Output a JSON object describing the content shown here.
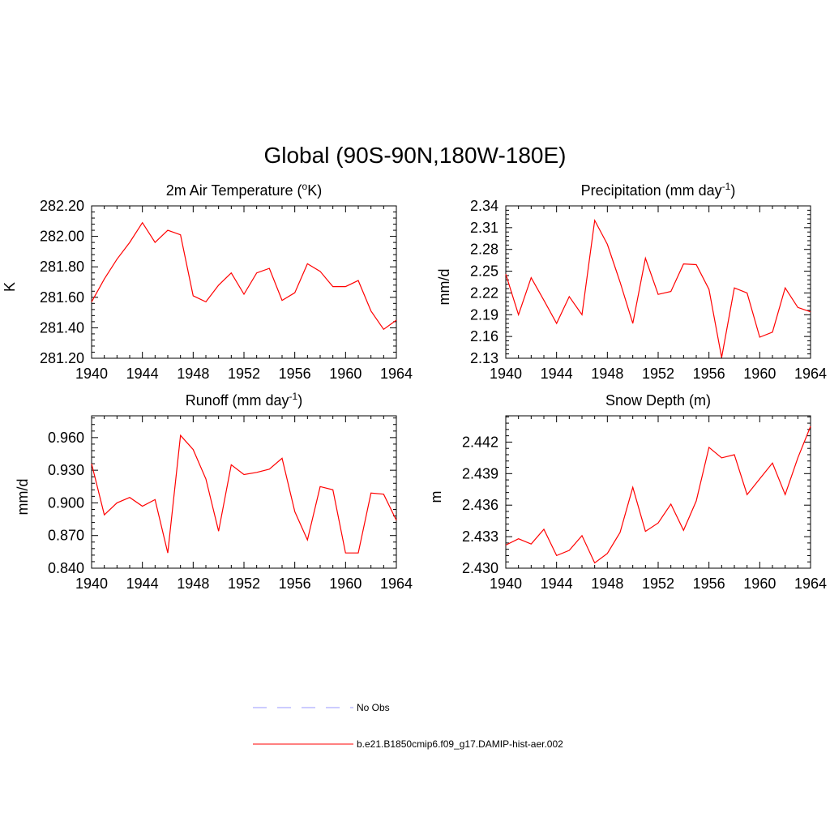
{
  "title": "Global (90S-90N,180W-180E)",
  "colors": {
    "model": "#ff0000",
    "obs": "#9999ff",
    "axis": "#000000"
  },
  "legend": [
    {
      "label": "No Obs",
      "style": "dashed",
      "color": "#9999ff"
    },
    {
      "label": "b.e21.B1850cmip6.f09_g17.DAMIP-hist-aer.002",
      "style": "solid",
      "color": "#ff0000"
    }
  ],
  "chart_data": [
    {
      "type": "line",
      "title_main": "2m Air Temperature (",
      "title_sup": "o",
      "title_after": "K)",
      "ylabel": "K",
      "xlim": [
        1940,
        1964
      ],
      "ylim": [
        281.2,
        282.2
      ],
      "xticks": [
        "1940",
        "1944",
        "1948",
        "1952",
        "1956",
        "1960",
        "1964"
      ],
      "yticks": [
        "281.20",
        "281.40",
        "281.60",
        "281.80",
        "282.00",
        "282.20"
      ],
      "x": [
        1940,
        1941,
        1942,
        1943,
        1944,
        1945,
        1946,
        1947,
        1948,
        1949,
        1950,
        1951,
        1952,
        1953,
        1954,
        1955,
        1956,
        1957,
        1958,
        1959,
        1960,
        1961,
        1962,
        1963,
        1964
      ],
      "series": [
        {
          "values": [
            281.57,
            281.72,
            281.85,
            281.96,
            282.09,
            281.96,
            282.04,
            282.01,
            281.61,
            281.57,
            281.68,
            281.76,
            281.62,
            281.76,
            281.79,
            281.58,
            281.63,
            281.82,
            281.77,
            281.67,
            281.67,
            281.71,
            281.51,
            281.39,
            281.45
          ]
        }
      ]
    },
    {
      "type": "line",
      "title_main": "Precipitation (mm day",
      "title_sup": "-1",
      "title_after": ")",
      "ylabel": "mm/d",
      "xlim": [
        1940,
        1964
      ],
      "ylim": [
        2.13,
        2.34
      ],
      "xticks": [
        "1940",
        "1944",
        "1948",
        "1952",
        "1956",
        "1960",
        "1964"
      ],
      "yticks": [
        "2.13",
        "2.16",
        "2.19",
        "2.22",
        "2.25",
        "2.28",
        "2.31",
        "2.34"
      ],
      "x": [
        1940,
        1941,
        1942,
        1943,
        1944,
        1945,
        1946,
        1947,
        1948,
        1949,
        1950,
        1951,
        1952,
        1953,
        1954,
        1955,
        1956,
        1957,
        1958,
        1959,
        1960,
        1961,
        1962,
        1963,
        1964
      ],
      "series": [
        {
          "values": [
            2.246,
            2.19,
            2.241,
            2.21,
            2.178,
            2.215,
            2.19,
            2.32,
            2.287,
            2.235,
            2.178,
            2.268,
            2.218,
            2.222,
            2.26,
            2.259,
            2.225,
            2.131,
            2.227,
            2.22,
            2.159,
            2.166,
            2.227,
            2.2,
            2.194
          ]
        }
      ]
    },
    {
      "type": "line",
      "title_main": "Runoff (mm day",
      "title_sup": "-1",
      "title_after": ")",
      "ylabel": "mm/d",
      "xlim": [
        1940,
        1964
      ],
      "ylim": [
        0.84,
        0.98
      ],
      "xticks": [
        "1940",
        "1944",
        "1948",
        "1952",
        "1956",
        "1960",
        "1964"
      ],
      "yticks": [
        "0.840",
        "0.870",
        "0.900",
        "0.930",
        "0.960"
      ],
      "x": [
        1940,
        1941,
        1942,
        1943,
        1944,
        1945,
        1946,
        1947,
        1948,
        1949,
        1950,
        1951,
        1952,
        1953,
        1954,
        1955,
        1956,
        1957,
        1958,
        1959,
        1960,
        1961,
        1962,
        1963,
        1964
      ],
      "series": [
        {
          "values": [
            0.936,
            0.889,
            0.9,
            0.905,
            0.897,
            0.903,
            0.854,
            0.962,
            0.949,
            0.922,
            0.874,
            0.935,
            0.926,
            0.928,
            0.931,
            0.941,
            0.892,
            0.866,
            0.915,
            0.912,
            0.854,
            0.854,
            0.909,
            0.908,
            0.884
          ]
        }
      ]
    },
    {
      "type": "line",
      "title_main": "Snow Depth (m)",
      "title_sup": "",
      "title_after": "",
      "ylabel": "m",
      "xlim": [
        1940,
        1964
      ],
      "ylim": [
        2.43,
        2.4445
      ],
      "xticks": [
        "1940",
        "1944",
        "1948",
        "1952",
        "1956",
        "1960",
        "1964"
      ],
      "yticks": [
        "2.430",
        "2.433",
        "2.436",
        "2.439",
        "2.442"
      ],
      "x": [
        1940,
        1941,
        1942,
        1943,
        1944,
        1945,
        1946,
        1947,
        1948,
        1949,
        1950,
        1951,
        1952,
        1953,
        1954,
        1955,
        1956,
        1957,
        1958,
        1959,
        1960,
        1961,
        1962,
        1963,
        1964
      ],
      "series": [
        {
          "values": [
            2.4322,
            2.4328,
            2.4323,
            2.4337,
            2.4312,
            2.4317,
            2.4331,
            2.4305,
            2.4314,
            2.4334,
            2.4377,
            2.4335,
            2.4343,
            2.4361,
            2.4336,
            2.4364,
            2.4415,
            2.4405,
            2.4408,
            2.437,
            2.4385,
            2.44,
            2.437,
            2.4405,
            2.4435
          ]
        }
      ]
    }
  ]
}
